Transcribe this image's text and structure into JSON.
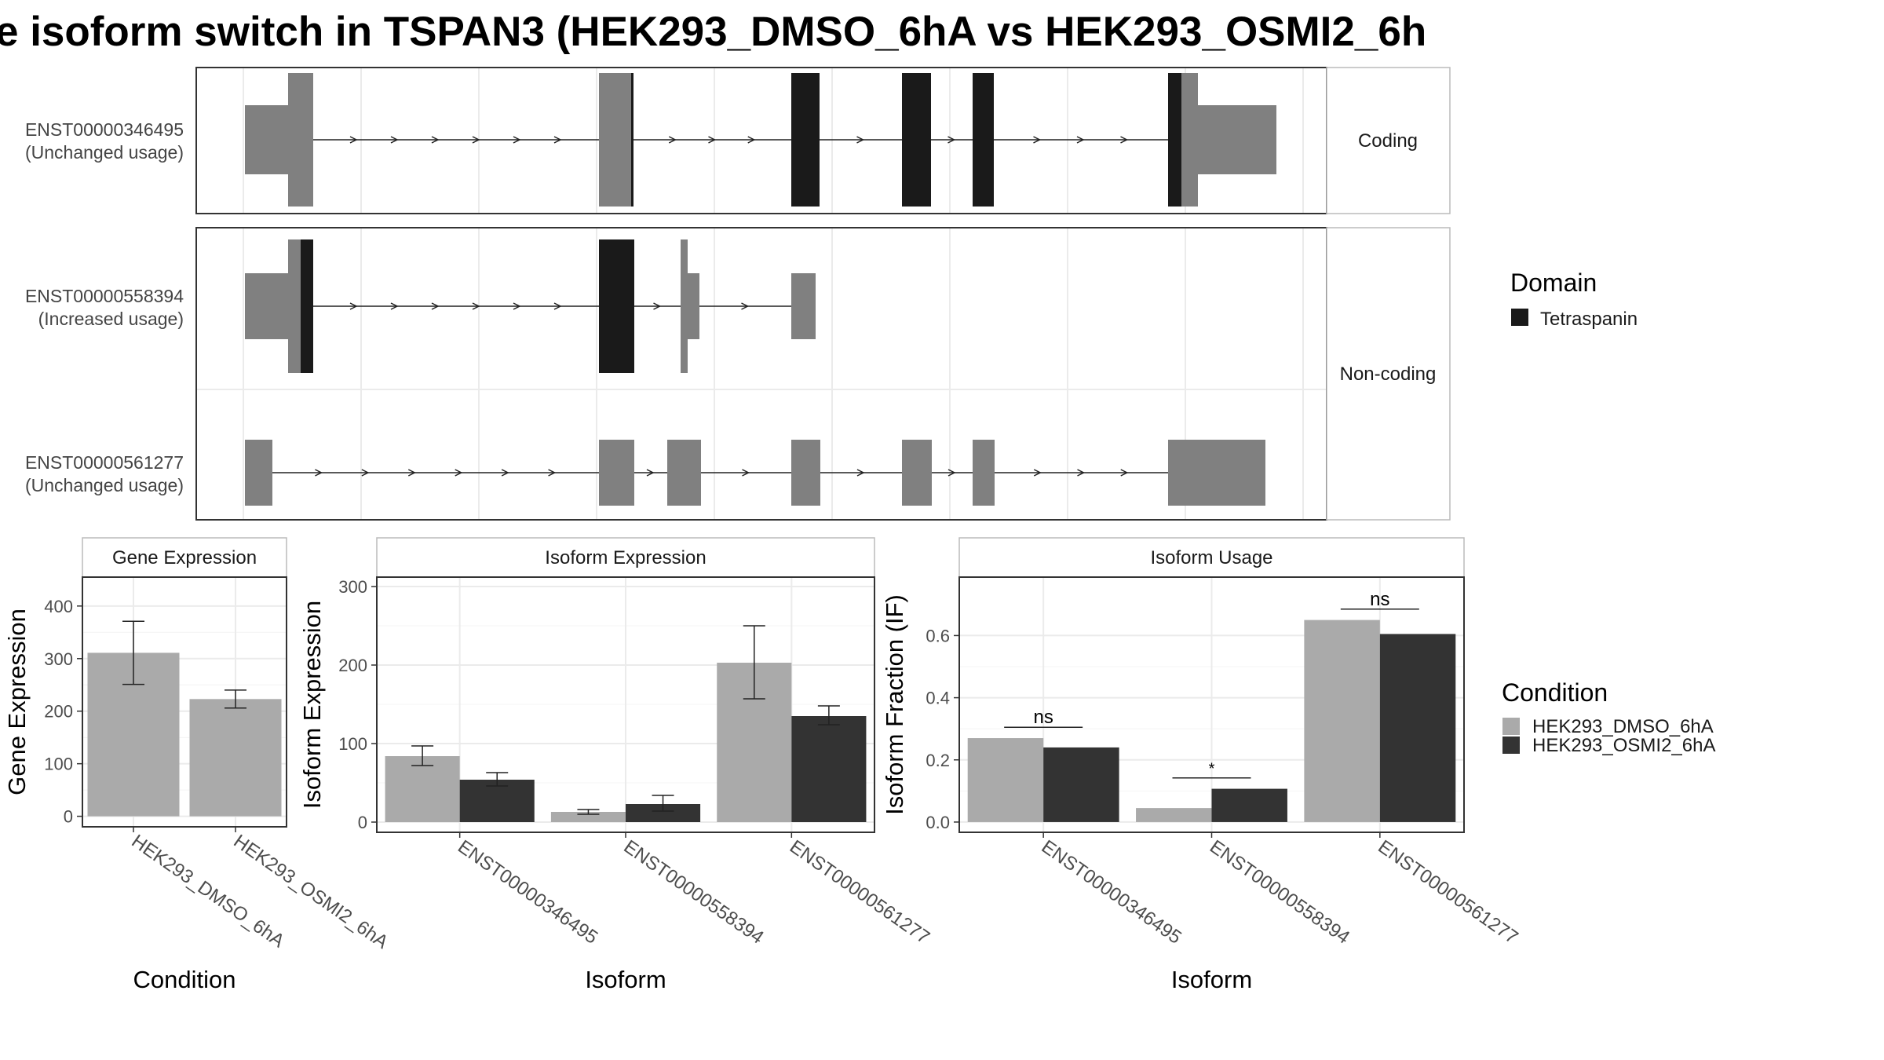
{
  "title": "e isoform switch in TSPAN3 (HEK293_DMSO_6hA vs HEK293_OSMI2_6h",
  "colors": {
    "tetraspanin": "#1a1a1a",
    "exon": "#808080",
    "dmso": "#aaaaaa",
    "osmi2": "#333333",
    "panel_border": "#333333",
    "strip_border": "#bbbbbb",
    "grid": "#ebebeb"
  },
  "structure": {
    "facets": [
      "Coding",
      "Non-coding"
    ],
    "transcripts": [
      {
        "id": "ENST00000346495",
        "usage": "(Unchanged usage)",
        "facet": "Coding"
      },
      {
        "id": "ENST00000558394",
        "usage": "(Increased usage)",
        "facet": "Non-coding"
      },
      {
        "id": "ENST00000561277",
        "usage": "(Unchanged usage)",
        "facet": "Non-coding"
      }
    ]
  },
  "legends": {
    "domain_title": "Domain",
    "domain_entries": [
      "Tetraspanin"
    ],
    "condition_title": "Condition",
    "condition_entries": [
      "HEK293_DMSO_6hA",
      "HEK293_OSMI2_6hA"
    ]
  },
  "chart_data": [
    {
      "type": "bar",
      "title": "Gene Expression",
      "xlabel": "Condition",
      "ylabel": "Gene Expression",
      "categories": [
        "HEK293_DMSO_6hA",
        "HEK293_OSMI2_6hA"
      ],
      "values": [
        311,
        223
      ],
      "error_low": [
        251,
        206
      ],
      "error_high": [
        371,
        240
      ],
      "ylim": [
        -20,
        455
      ],
      "yticks": [
        0,
        100,
        200,
        300,
        400
      ],
      "grid": true
    },
    {
      "type": "bar",
      "title": "Isoform Expression",
      "xlabel": "Isoform",
      "ylabel": "Isoform Expression",
      "categories": [
        "ENST00000346495",
        "ENST00000558394",
        "ENST00000561277"
      ],
      "series": [
        {
          "name": "HEK293_DMSO_6hA",
          "values": [
            84,
            13,
            203
          ],
          "error_low": [
            72,
            10,
            157
          ],
          "error_high": [
            97,
            16,
            250
          ]
        },
        {
          "name": "HEK293_OSMI2_6hA",
          "values": [
            54,
            23,
            135
          ],
          "error_low": [
            46,
            14,
            124
          ],
          "error_high": [
            63,
            34,
            148
          ]
        }
      ],
      "ylim": [
        -13,
        312
      ],
      "yticks": [
        0,
        100,
        200,
        300
      ],
      "grid": true
    },
    {
      "type": "bar",
      "title": "Isoform Usage",
      "xlabel": "Isoform",
      "ylabel": "Isoform Fraction (IF)",
      "categories": [
        "ENST00000346495",
        "ENST00000558394",
        "ENST00000561277"
      ],
      "series": [
        {
          "name": "HEK293_DMSO_6hA",
          "values": [
            0.27,
            0.045,
            0.65
          ]
        },
        {
          "name": "HEK293_OSMI2_6hA",
          "values": [
            0.24,
            0.107,
            0.605
          ]
        }
      ],
      "significance": [
        "ns",
        "*",
        "ns"
      ],
      "significance_y": [
        0.305,
        0.142,
        0.685
      ],
      "ylim": [
        -0.033,
        0.788
      ],
      "yticks": [
        0.0,
        0.2,
        0.4,
        0.6
      ],
      "grid": true
    }
  ]
}
